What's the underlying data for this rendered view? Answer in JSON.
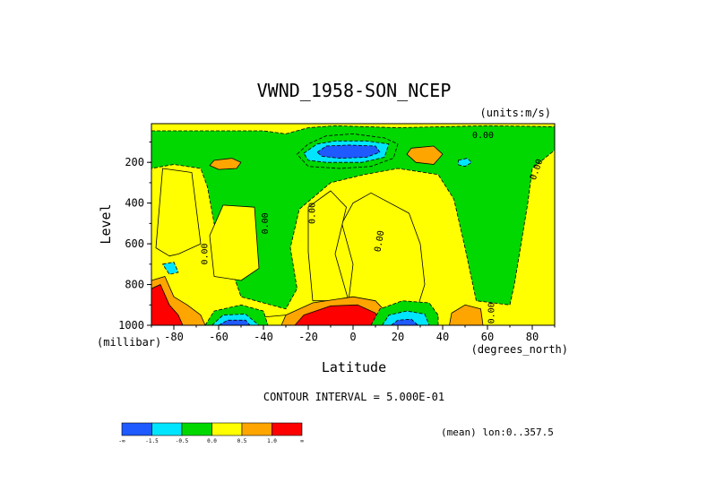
{
  "chart_data": {
    "type": "heatmap",
    "title": "VWND_1958-SON_NCEP",
    "units_label": "(units:m/s)",
    "xlabel": "Latitude",
    "x_units_label": "(degrees_north)",
    "ylabel": "Level",
    "y_units_label": "(millibar)",
    "x_range": [
      -90,
      90
    ],
    "y_range": [
      1000,
      10
    ],
    "y_inverted": true,
    "x_ticks": [
      {
        "value": -80,
        "label": "-80"
      },
      {
        "value": -60,
        "label": "-60"
      },
      {
        "value": -40,
        "label": "-40"
      },
      {
        "value": -20,
        "label": "-20"
      },
      {
        "value": 0,
        "label": "0"
      },
      {
        "value": 20,
        "label": "20"
      },
      {
        "value": 40,
        "label": "40"
      },
      {
        "value": 60,
        "label": "60"
      },
      {
        "value": 80,
        "label": "80"
      }
    ],
    "y_ticks": [
      {
        "value": 200,
        "label": "200"
      },
      {
        "value": 400,
        "label": "400"
      },
      {
        "value": 600,
        "label": "600"
      },
      {
        "value": 800,
        "label": "800"
      },
      {
        "value": 1000,
        "label": "1000"
      }
    ],
    "contour_interval_label": "CONTOUR INTERVAL = 5.000E-01",
    "contour_labels": [
      {
        "text": "0.00",
        "lat": 58,
        "lev": 80,
        "rotate": 0
      },
      {
        "text": "0.00",
        "lat": 83,
        "lev": 240,
        "rotate": -70
      },
      {
        "text": "0.00",
        "lat": -65,
        "lev": 650,
        "rotate": -90
      },
      {
        "text": "0.00",
        "lat": -38,
        "lev": 500,
        "rotate": -90
      },
      {
        "text": "0.00",
        "lat": -17,
        "lev": 450,
        "rotate": -90
      },
      {
        "text": "0.00",
        "lat": 13,
        "lev": 590,
        "rotate": -80
      },
      {
        "text": "0.00",
        "lat": 63,
        "lev": 940,
        "rotate": -90
      }
    ],
    "legend": {
      "colors": [
        "#1e5aff",
        "#00e5ff",
        "#00d800",
        "#ffff00",
        "#ffa500",
        "#ff0000"
      ],
      "labels": [
        "-∞",
        "-1.5",
        "-0.5",
        "0.0",
        "0.5",
        "1.0",
        "∞"
      ]
    },
    "footnote": "(mean) lon:0..357.5",
    "regions": [
      {
        "level": 0,
        "pts": [
          [
            -90,
            10
          ],
          [
            90,
            10
          ],
          [
            90,
            1000
          ],
          [
            -90,
            1000
          ]
        ]
      },
      {
        "level": -1,
        "pts": [
          [
            -90,
            45
          ],
          [
            -40,
            45
          ],
          [
            -30,
            60
          ],
          [
            -20,
            30
          ],
          [
            -8,
            20
          ],
          [
            20,
            30
          ],
          [
            60,
            20
          ],
          [
            90,
            25
          ],
          [
            90,
            140
          ],
          [
            80,
            230
          ],
          [
            78,
            400
          ],
          [
            75,
            600
          ],
          [
            72,
            800
          ],
          [
            70,
            900
          ],
          [
            55,
            880
          ],
          [
            50,
            620
          ],
          [
            45,
            380
          ],
          [
            38,
            260
          ],
          [
            20,
            230
          ],
          [
            5,
            260
          ],
          [
            -10,
            300
          ],
          [
            -24,
            430
          ],
          [
            -28,
            620
          ],
          [
            -25,
            820
          ],
          [
            -30,
            920
          ],
          [
            -50,
            860
          ],
          [
            -55,
            700
          ],
          [
            -62,
            500
          ],
          [
            -65,
            320
          ],
          [
            -68,
            230
          ],
          [
            -80,
            210
          ],
          [
            -90,
            230
          ]
        ]
      },
      {
        "level": 0,
        "pts": [
          [
            -85,
            230
          ],
          [
            -72,
            250
          ],
          [
            -68,
            600
          ],
          [
            -78,
            650
          ],
          [
            -82,
            660
          ],
          [
            -88,
            620
          ]
        ]
      },
      {
        "level": 0,
        "pts": [
          [
            -2,
            880
          ],
          [
            0,
            700
          ],
          [
            -5,
            500
          ],
          [
            0,
            400
          ],
          [
            8,
            350
          ],
          [
            25,
            450
          ],
          [
            30,
            600
          ],
          [
            32,
            800
          ],
          [
            28,
            940
          ],
          [
            10,
            960
          ]
        ]
      },
      {
        "level": 0,
        "pts": [
          [
            -58,
            410
          ],
          [
            -44,
            420
          ],
          [
            -42,
            720
          ],
          [
            -50,
            780
          ],
          [
            -62,
            760
          ],
          [
            -64,
            560
          ]
        ]
      },
      {
        "level": 0,
        "pts": [
          [
            -2,
            880
          ],
          [
            -8,
            650
          ],
          [
            -3,
            420
          ],
          [
            -10,
            340
          ],
          [
            -20,
            420
          ],
          [
            -20,
            640
          ],
          [
            -18,
            880
          ]
        ]
      },
      {
        "level": 1,
        "pts": [
          [
            -62,
            190
          ],
          [
            -54,
            180
          ],
          [
            -50,
            200
          ],
          [
            -52,
            230
          ],
          [
            -60,
            235
          ],
          [
            -64,
            215
          ]
        ]
      },
      {
        "level": 1,
        "pts": [
          [
            26,
            130
          ],
          [
            36,
            120
          ],
          [
            40,
            160
          ],
          [
            36,
            210
          ],
          [
            28,
            200
          ],
          [
            24,
            160
          ]
        ]
      },
      {
        "level": 0,
        "pts": [
          [
            -40,
            960
          ],
          [
            -20,
            940
          ],
          [
            0,
            920
          ],
          [
            25,
            950
          ],
          [
            30,
            1000
          ],
          [
            -40,
            1000
          ]
        ]
      },
      {
        "level": 1,
        "pts": [
          [
            -32,
            1000
          ],
          [
            -30,
            950
          ],
          [
            -18,
            890
          ],
          [
            0,
            860
          ],
          [
            10,
            880
          ],
          [
            16,
            950
          ],
          [
            18,
            1000
          ]
        ]
      },
      {
        "level": 2,
        "pts": [
          [
            -26,
            1000
          ],
          [
            -22,
            950
          ],
          [
            -10,
            905
          ],
          [
            2,
            900
          ],
          [
            10,
            940
          ],
          [
            12,
            1000
          ]
        ]
      },
      {
        "level": -1,
        "pts": [
          [
            8,
            1000
          ],
          [
            12,
            920
          ],
          [
            22,
            880
          ],
          [
            34,
            890
          ],
          [
            38,
            950
          ],
          [
            38,
            1000
          ]
        ]
      },
      {
        "level": -2,
        "pts": [
          [
            13,
            1000
          ],
          [
            16,
            950
          ],
          [
            24,
            930
          ],
          [
            32,
            945
          ],
          [
            34,
            1000
          ]
        ]
      },
      {
        "level": -3,
        "pts": [
          [
            17,
            1000
          ],
          [
            20,
            975
          ],
          [
            26,
            970
          ],
          [
            29,
            1000
          ]
        ]
      },
      {
        "level": -1,
        "pts": [
          [
            -66,
            1000
          ],
          [
            -62,
            930
          ],
          [
            -50,
            900
          ],
          [
            -40,
            930
          ],
          [
            -38,
            1000
          ]
        ]
      },
      {
        "level": -2,
        "pts": [
          [
            -63,
            1000
          ],
          [
            -58,
            950
          ],
          [
            -48,
            945
          ],
          [
            -42,
            1000
          ]
        ]
      },
      {
        "level": -3,
        "pts": [
          [
            -60,
            1000
          ],
          [
            -56,
            975
          ],
          [
            -48,
            975
          ],
          [
            -46,
            1000
          ]
        ]
      },
      {
        "level": 1,
        "pts": [
          [
            -90,
            780
          ],
          [
            -84,
            760
          ],
          [
            -80,
            860
          ],
          [
            -74,
            900
          ],
          [
            -68,
            950
          ],
          [
            -66,
            1000
          ],
          [
            -90,
            1000
          ]
        ]
      },
      {
        "level": 2,
        "pts": [
          [
            -90,
            820
          ],
          [
            -86,
            800
          ],
          [
            -82,
            900
          ],
          [
            -78,
            950
          ],
          [
            -76,
            1000
          ],
          [
            -90,
            1000
          ]
        ]
      },
      {
        "level": -2,
        "pts": [
          [
            -85,
            700
          ],
          [
            -80,
            690
          ],
          [
            -78,
            740
          ],
          [
            -82,
            750
          ]
        ]
      },
      {
        "level": 1,
        "pts": [
          [
            43,
            1000
          ],
          [
            44,
            940
          ],
          [
            50,
            900
          ],
          [
            57,
            920
          ],
          [
            58,
            1000
          ]
        ]
      },
      {
        "level": -1,
        "pts": [
          [
            -25,
            160
          ],
          [
            -20,
            110
          ],
          [
            -12,
            70
          ],
          [
            0,
            60
          ],
          [
            14,
            80
          ],
          [
            20,
            110
          ],
          [
            18,
            180
          ],
          [
            8,
            220
          ],
          [
            -6,
            230
          ],
          [
            -20,
            220
          ]
        ]
      },
      {
        "level": -2,
        "pts": [
          [
            -22,
            155
          ],
          [
            -16,
            110
          ],
          [
            -8,
            95
          ],
          [
            6,
            95
          ],
          [
            16,
            110
          ],
          [
            14,
            175
          ],
          [
            4,
            200
          ],
          [
            -12,
            200
          ],
          [
            -20,
            190
          ]
        ]
      },
      {
        "level": -3,
        "pts": [
          [
            -16,
            150
          ],
          [
            -12,
            120
          ],
          [
            -2,
            115
          ],
          [
            10,
            120
          ],
          [
            12,
            150
          ],
          [
            6,
            175
          ],
          [
            -6,
            180
          ],
          [
            -14,
            170
          ]
        ]
      },
      {
        "level": -2,
        "pts": [
          [
            47,
            190
          ],
          [
            51,
            180
          ],
          [
            53,
            200
          ],
          [
            50,
            220
          ],
          [
            47,
            212
          ]
        ]
      }
    ]
  }
}
